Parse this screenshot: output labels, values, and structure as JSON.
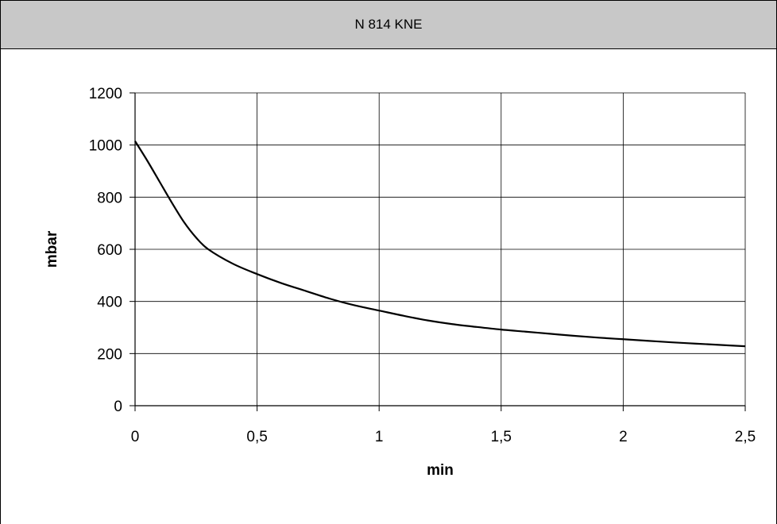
{
  "chart_data": {
    "type": "line",
    "title": "N 814 KNE",
    "xlabel": "min",
    "ylabel": "mbar",
    "xlim": [
      0,
      2.5
    ],
    "ylim": [
      0,
      1200
    ],
    "x_ticks": [
      "0",
      "0,5",
      "1",
      "1,5",
      "2",
      "2,5"
    ],
    "y_ticks": [
      "0",
      "200",
      "400",
      "600",
      "800",
      "1000",
      "1200"
    ],
    "grid": true,
    "legend": "none",
    "series": [
      {
        "color": "#000000",
        "x": [
          0,
          0.05,
          0.1,
          0.15,
          0.2,
          0.25,
          0.3,
          0.4,
          0.5,
          0.6,
          0.7,
          0.8,
          0.9,
          1.0,
          1.1,
          1.2,
          1.3,
          1.4,
          1.5,
          1.6,
          1.7,
          1.8,
          1.9,
          2.0,
          2.1,
          2.2,
          2.3,
          2.4,
          2.5
        ],
        "y": [
          1015,
          940,
          860,
          780,
          705,
          645,
          600,
          545,
          505,
          470,
          440,
          410,
          385,
          365,
          345,
          327,
          313,
          302,
          292,
          284,
          276,
          268,
          261,
          255,
          249,
          243,
          238,
          233,
          228
        ]
      }
    ]
  }
}
